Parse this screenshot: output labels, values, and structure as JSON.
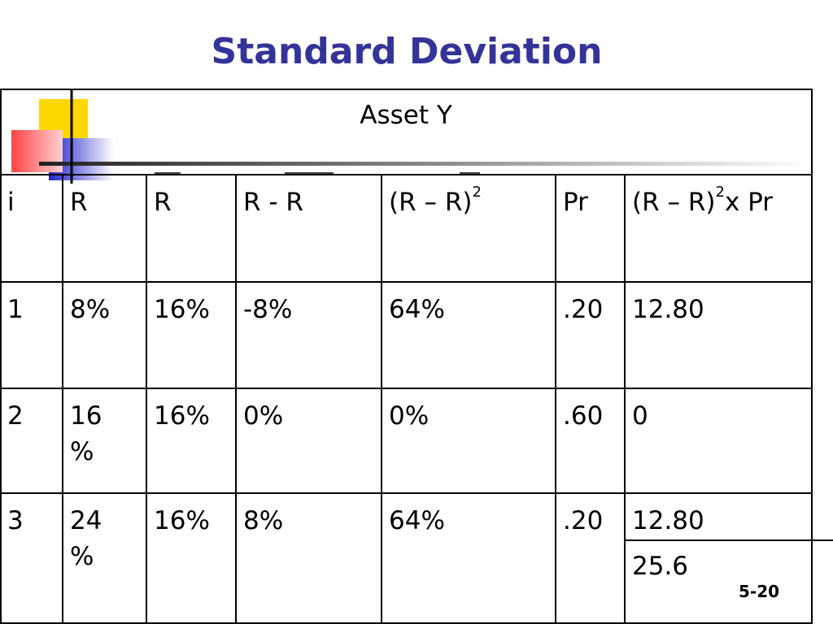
{
  "title": "Standard Deviation",
  "table": {
    "caption": "Asset Y",
    "header": [
      "i",
      "R",
      "R",
      "R - R",
      {
        "text": "(R – R)",
        "sup": "2"
      },
      "Pr",
      {
        "text": "(R – R)",
        "sup": "2",
        "after": "x Pr"
      }
    ],
    "rows": [
      [
        "1",
        "8%",
        "16%",
        "-8%",
        "64%",
        ".20",
        "12.80"
      ],
      [
        "2",
        "16%",
        "16%",
        "0%",
        "0%",
        ".60",
        "0"
      ],
      [
        "3",
        "24%",
        "16%",
        "8%",
        "64%",
        ".20",
        "12.80"
      ]
    ],
    "total": "25.6"
  },
  "page_number": "5-20"
}
